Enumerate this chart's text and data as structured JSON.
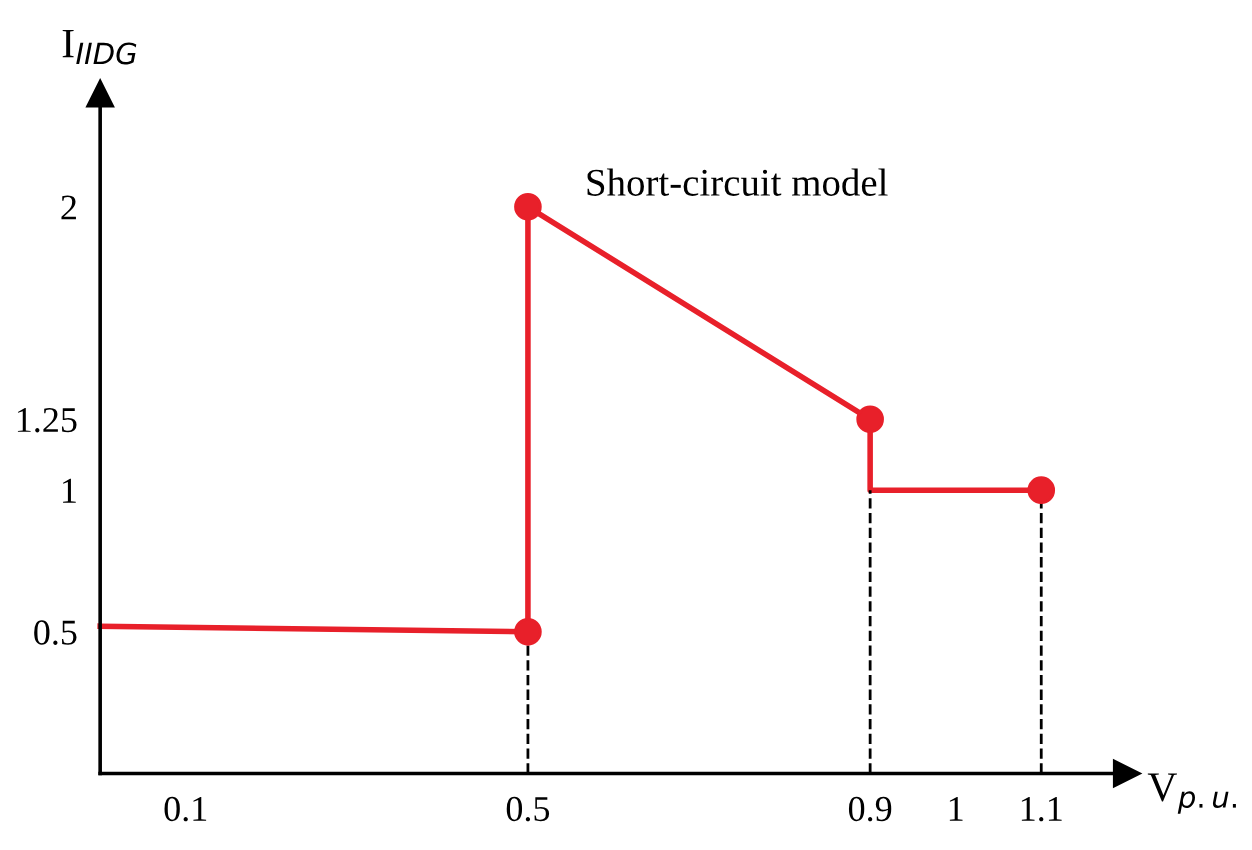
{
  "chart_data": {
    "type": "line",
    "title": "Short-circuit model",
    "xlabel": "V$_{p.u.}$",
    "ylabel": "I$_{IIDG}$",
    "xlim": [
      0,
      1.2
    ],
    "ylim": [
      0,
      2.4
    ],
    "xticks": [
      0.1,
      0.5,
      0.9,
      1,
      1.1
    ],
    "yticks": [
      0.5,
      1,
      1.25,
      2
    ],
    "grid": false,
    "legend": false,
    "series": [
      {
        "color": "#e8202a",
        "x": [
          0,
          0.5,
          0.5,
          0.9,
          0.9,
          1.1
        ],
        "values": [
          0.52,
          0.5,
          2,
          1.25,
          1,
          1
        ],
        "marker": "none",
        "line_style": "solid"
      },
      {
        "type": "scatter",
        "color": "#e8202a",
        "x": [
          0.5,
          0.5,
          0.9,
          1.1
        ],
        "values": [
          0.5,
          2,
          1.25,
          1
        ],
        "marker": "circle"
      },
      {
        "color": "#000000",
        "x": [
          0.5,
          0.5
        ],
        "values": [
          0,
          0.5
        ],
        "marker": "none",
        "line_style": "dashed"
      },
      {
        "color": "#000000",
        "x": [
          0.9,
          0.9
        ],
        "values": [
          0,
          1
        ],
        "marker": "none",
        "line_style": "dashed"
      },
      {
        "color": "#000000",
        "x": [
          1.1,
          1.1
        ],
        "values": [
          0,
          1
        ],
        "marker": "none",
        "line_style": "dashed"
      }
    ]
  }
}
